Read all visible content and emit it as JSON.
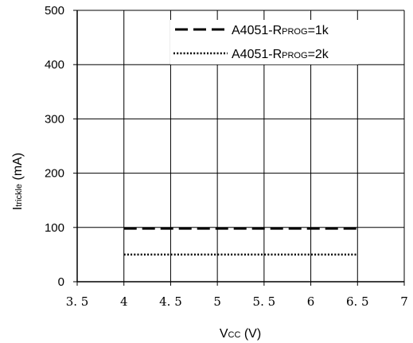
{
  "chart_data": {
    "type": "line",
    "xlim": [
      3.5,
      7
    ],
    "ylim": [
      0,
      500
    ],
    "x_ticks": [
      "3. 5",
      "4",
      "4. 5",
      "5",
      "5. 5",
      "6",
      "6. 5",
      "7"
    ],
    "x_tick_values": [
      3.5,
      4,
      4.5,
      5,
      5.5,
      6,
      6.5,
      7
    ],
    "y_ticks": [
      "0",
      "100",
      "200",
      "300",
      "400",
      "500"
    ],
    "y_tick_values": [
      0,
      100,
      200,
      300,
      400,
      500
    ],
    "xlabel": {
      "main": "V",
      "sub": "CC",
      "rest": " (V)"
    },
    "ylabel": {
      "main": "I",
      "sub": "trickle",
      "rest": " (mA)"
    },
    "grid": true,
    "legend_position": "top-right",
    "series": [
      {
        "name": {
          "prefix": "A4051-R",
          "sub": "PROG",
          "suffix": "=1k"
        },
        "style": "dashed",
        "x": [
          4,
          6.5
        ],
        "y": [
          98,
          98
        ]
      },
      {
        "name": {
          "prefix": "A4051-R",
          "sub": "PROG",
          "suffix": "=2k"
        },
        "style": "dotted",
        "x": [
          4,
          6.5
        ],
        "y": [
          50,
          50
        ]
      }
    ]
  }
}
